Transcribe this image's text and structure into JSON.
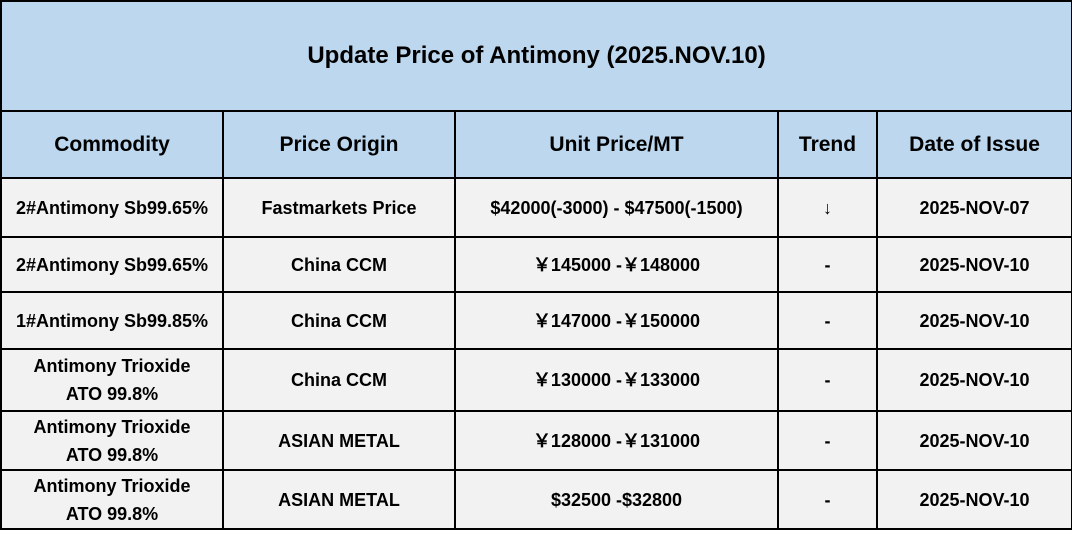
{
  "title": "Update Price of Antimony (2025.NOV.10)",
  "columns": [
    "Commodity",
    "Price Origin",
    "Unit Price/MT",
    "Trend",
    "Date of Issue"
  ],
  "rows": [
    {
      "commodity": "2#Antimony  Sb99.65%",
      "origin": "Fastmarkets Price",
      "price": "$42000(-3000) - $47500(-1500)",
      "trend": "↓",
      "date": "2025-NOV-07"
    },
    {
      "commodity": "2#Antimony  Sb99.65%",
      "origin": "China CCM",
      "price": "￥145000 -￥148000",
      "trend": "-",
      "date": "2025-NOV-10"
    },
    {
      "commodity": "1#Antimony  Sb99.85%",
      "origin": "China CCM",
      "price": "￥147000 -￥150000",
      "trend": "-",
      "date": "2025-NOV-10"
    },
    {
      "commodity": "Antimony Trioxide\nATO 99.8%",
      "origin": "China CCM",
      "price": "￥130000 -￥133000",
      "trend": "-",
      "date": "2025-NOV-10"
    },
    {
      "commodity": "Antimony Trioxide\nATO 99.8%",
      "origin": "ASIAN METAL",
      "price": "￥128000 -￥131000",
      "trend": "-",
      "date": "2025-NOV-10"
    },
    {
      "commodity": "Antimony Trioxide\nATO 99.8%",
      "origin": "ASIAN METAL",
      "price": "$32500 -$32800",
      "trend": "-",
      "date": "2025-NOV-10"
    }
  ],
  "colors": {
    "header_bg": "#BDD7EE",
    "body_bg": "#F2F2F2",
    "border": "#000000"
  }
}
